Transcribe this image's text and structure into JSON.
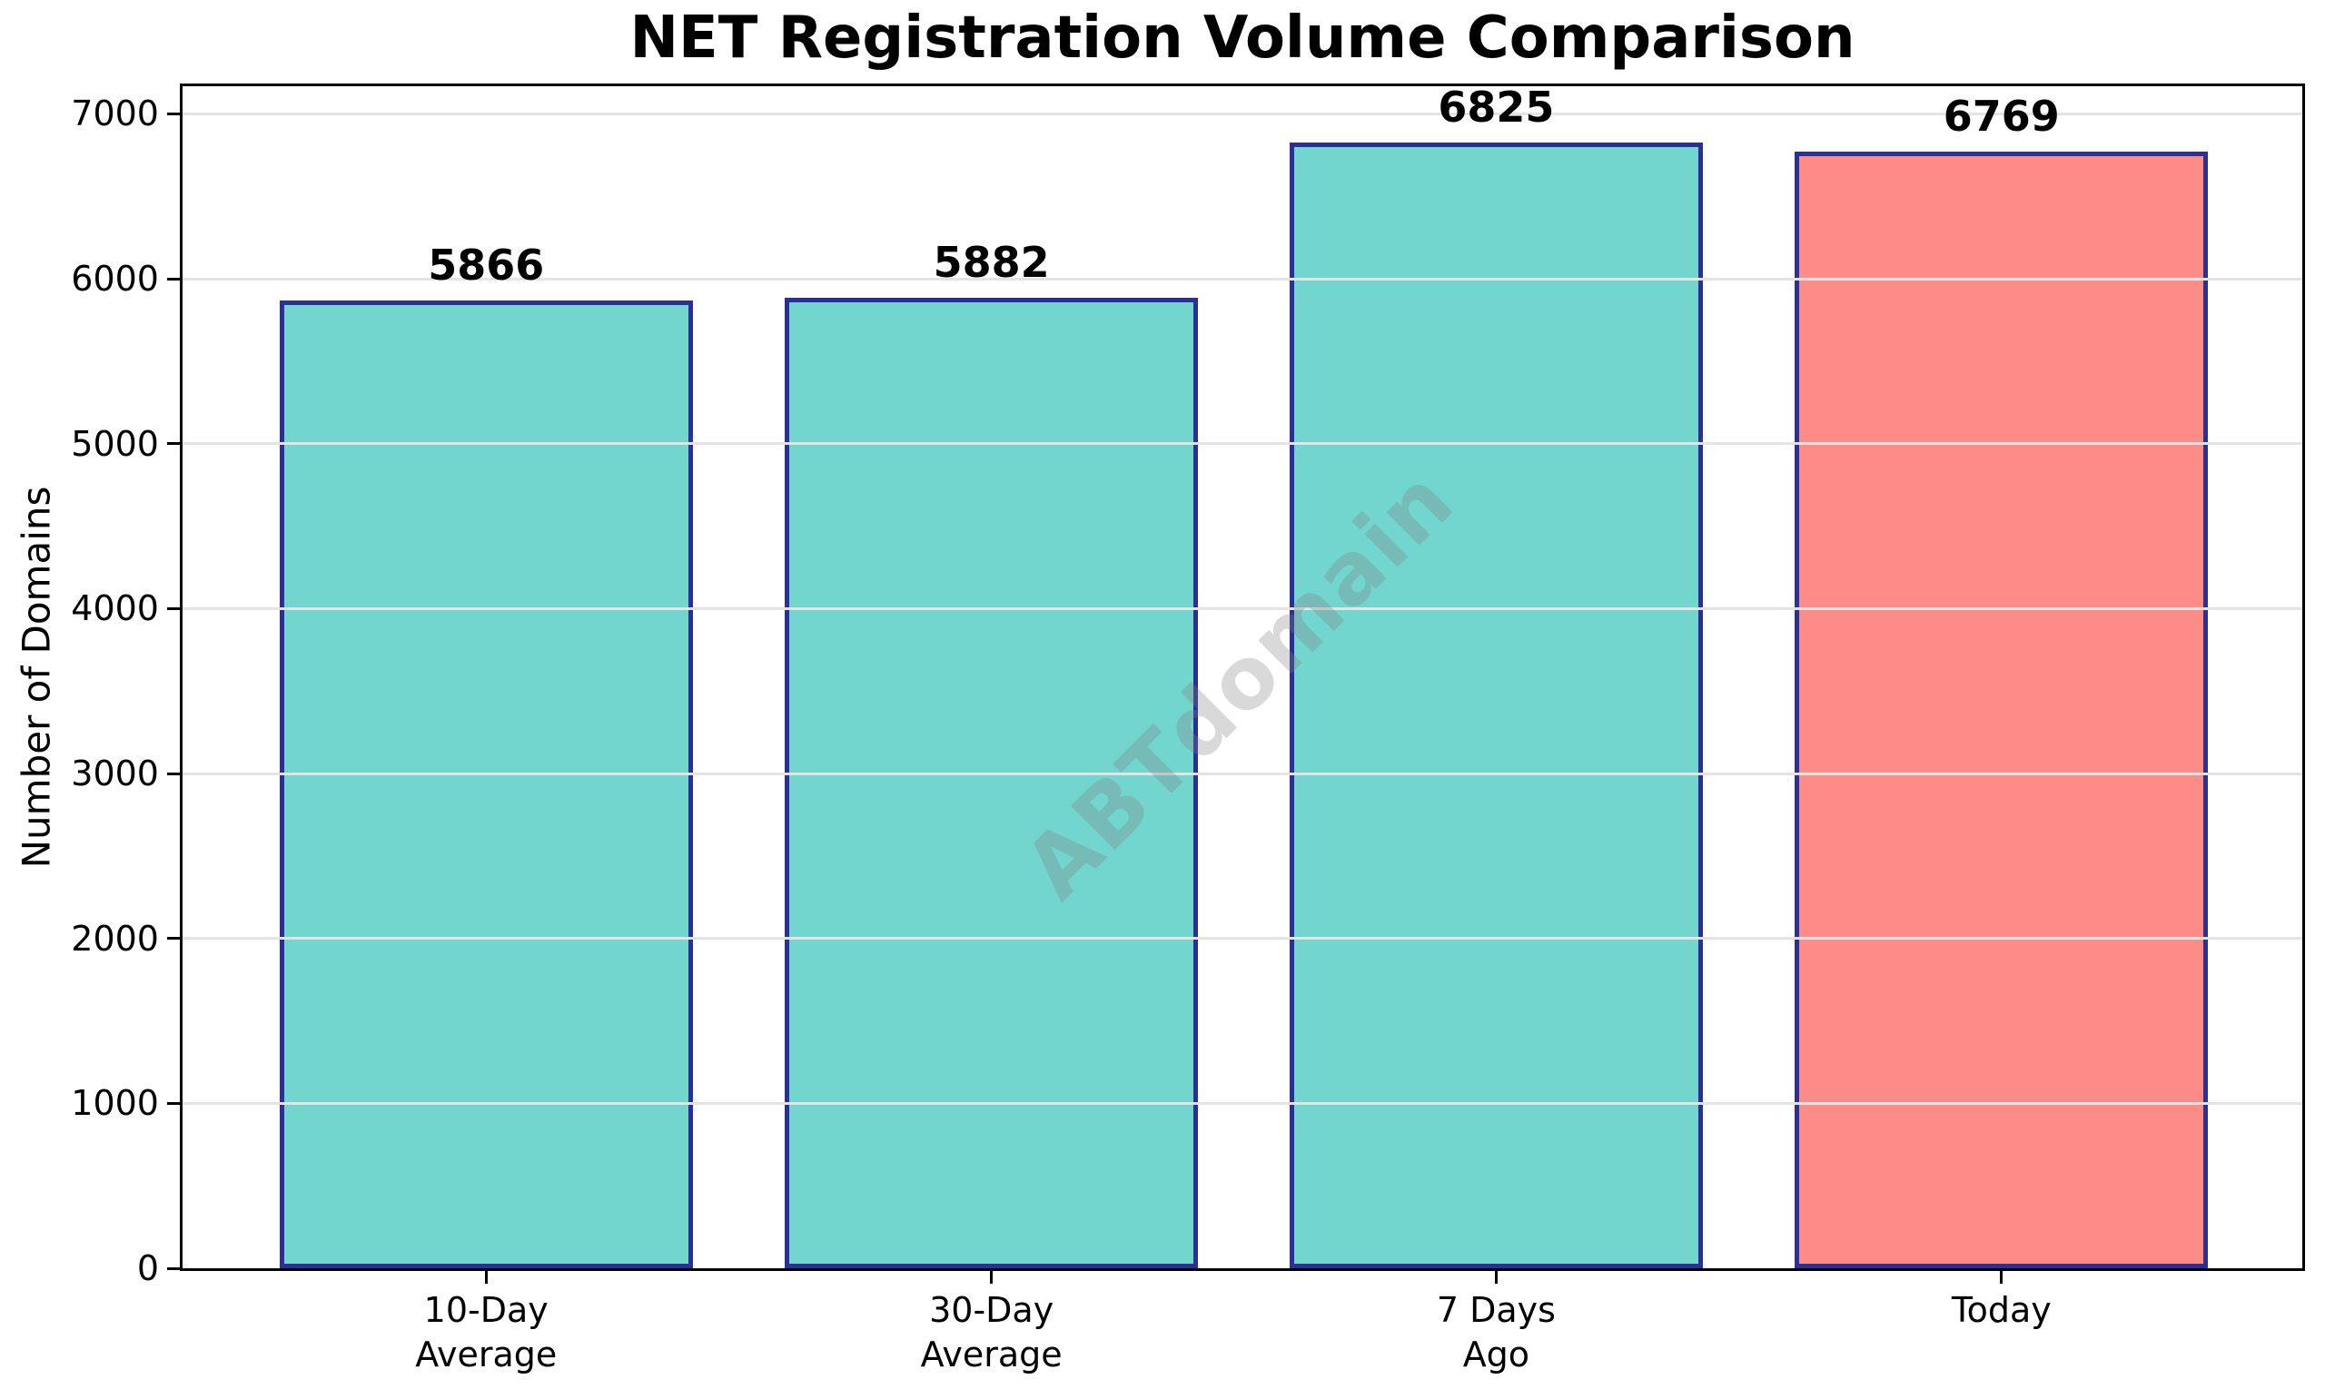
{
  "figure": {
    "watermark": "ABTdomain"
  },
  "chart_data": {
    "type": "bar",
    "title": "NET Registration Volume Comparison",
    "categories": [
      [
        "10-Day",
        "Average"
      ],
      [
        "30-Day",
        "Average"
      ],
      [
        "7 Days",
        "Ago"
      ],
      [
        "Today"
      ]
    ],
    "values": [
      5866,
      5882,
      6825,
      6769
    ],
    "bar_labels": [
      "5866",
      "5882",
      "6825",
      "6769"
    ],
    "xlabel": "",
    "ylabel": "Number of Domains",
    "ylim": [
      0,
      7167
    ],
    "yticks": [
      0,
      1000,
      2000,
      3000,
      4000,
      5000,
      6000,
      7000
    ],
    "grid": "horizontal",
    "legend": "none",
    "colors": {
      "bar_fill": [
        "#72d5ce",
        "#72d5ce",
        "#72d5ce",
        "#fd8b88"
      ],
      "bar_edge": "#2b2f96",
      "grid_line": "#e4e4e4",
      "watermark": "rgba(128,128,128,0.3)",
      "axis": "#000000",
      "text": "#000000"
    }
  }
}
